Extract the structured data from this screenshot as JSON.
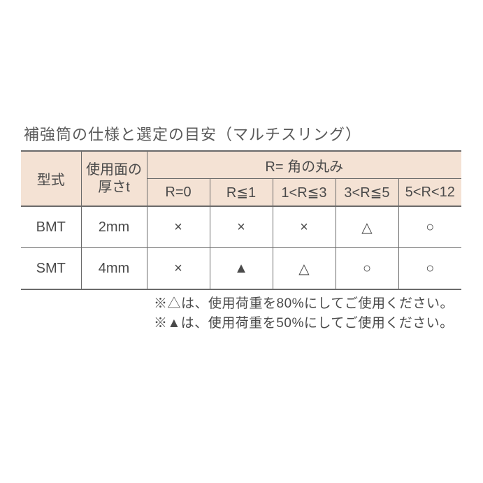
{
  "title": "補強筒の仕様と選定の目安（マルチスリング）",
  "table": {
    "type": "table",
    "header_bg": "#f4e2d4",
    "border_color_heavy": "#6a6a6a",
    "border_color_light": "#6a6a6a",
    "text_color": "#4a4a4a",
    "col_model_label": "型式",
    "col_thickness_line1": "使用面の",
    "col_thickness_line2": "厚さt",
    "r_group_label": "R= 角の丸み",
    "r_sub_labels": [
      "R=0",
      "R≦1",
      "1<R≦3",
      "3<R≦5",
      "5<R<12"
    ],
    "rows": [
      {
        "model": "BMT",
        "thickness": "2mm",
        "cells": [
          "×",
          "×",
          "×",
          "△",
          "○"
        ]
      },
      {
        "model": "SMT",
        "thickness": "4mm",
        "cells": [
          "×",
          "▲",
          "△",
          "○",
          "○"
        ]
      }
    ]
  },
  "notes": {
    "line1": "※△は、使用荷重を80%にしてご使用ください。",
    "line2": "※▲は、使用荷重を50%にしてご使用ください。"
  }
}
